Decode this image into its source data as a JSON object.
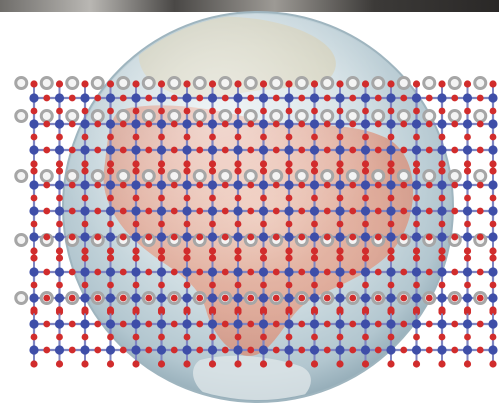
{
  "image": {
    "subject": "",
    "palette": {
      "background": "#ffffff",
      "globe_ocean": "#c9d9de",
      "globe_land": "#e9a48a",
      "globe_rim": "#8ea7b3",
      "metal_atom": "#3e4ea8",
      "oxygen_atom": "#d12c2c",
      "cation_ring": "#a6a6a6",
      "bond": "#7f86c2"
    }
  },
  "lattice": {
    "columns": 19,
    "metal_rows": 10,
    "layer_breaks_after_metal_row": [
      2,
      5,
      7
    ]
  }
}
